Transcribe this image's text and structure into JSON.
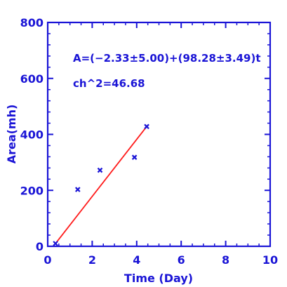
{
  "chart_data": {
    "type": "scatter",
    "xlabel": "Time (Day)",
    "ylabel": "Area(mh)",
    "xlim": [
      0,
      10
    ],
    "ylim": [
      0,
      800
    ],
    "x_ticks": [
      0,
      2,
      4,
      6,
      8,
      10
    ],
    "y_ticks": [
      0,
      200,
      400,
      600,
      800
    ],
    "x_tick_labels": [
      "0",
      "2",
      "4",
      "6",
      "8",
      "10"
    ],
    "y_tick_labels": [
      "0",
      "200",
      "400",
      "600",
      "800"
    ],
    "points": [
      {
        "x": 0.35,
        "y": 10
      },
      {
        "x": 1.35,
        "y": 203
      },
      {
        "x": 2.35,
        "y": 272
      },
      {
        "x": 3.9,
        "y": 318
      },
      {
        "x": 4.45,
        "y": 428
      }
    ],
    "fit": {
      "x": [
        0.35,
        4.45
      ],
      "y": [
        10,
        428
      ]
    },
    "annotations": [
      "A=(−2.33±5.00)+(98.28±3.49)t",
      "ch^2=46.68"
    ],
    "grid": false,
    "colors": {
      "axis": "#1a14d6",
      "points": "#1a14d6",
      "fit": "#ff1a1a"
    }
  }
}
